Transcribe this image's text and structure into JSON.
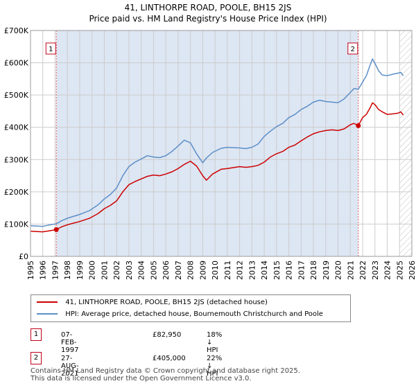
{
  "title_line1": "41, LINTHORPE ROAD, POOLE, BH15 2JS",
  "title_line2": "Price paid vs. HM Land Registry's House Price Index (HPI)",
  "colors": {
    "property": "#cc0000",
    "hpi": "#5b8ec8",
    "grid": "#cccccc",
    "shade": "#dde6f3"
  },
  "legend": {
    "property_label": "41, LINTHORPE ROAD, POOLE, BH15 2JS (detached house)",
    "hpi_label": "HPI: Average price, detached house, Bournemouth Christchurch and Poole"
  },
  "sales": [
    {
      "marker": "1",
      "date": "07-FEB-1997",
      "price": "£82,950",
      "hpi_diff": "18% ↓ HPI"
    },
    {
      "marker": "2",
      "date": "27-AUG-2021",
      "price": "£405,000",
      "hpi_diff": "22% ↓ HPI"
    }
  ],
  "footer_line1": "Contains HM Land Registry data © Crown copyright and database right 2025.",
  "footer_line2": "This data is licensed under the Open Government Licence v3.0.",
  "chart_data": {
    "type": "line",
    "title": "41, LINTHORPE ROAD, POOLE, BH15 2JS — Price paid vs. HM Land Registry's House Price Index (HPI)",
    "xlim": [
      1995,
      2026
    ],
    "ylim": [
      0,
      700000
    ],
    "xticks": [
      1995,
      1996,
      1997,
      1998,
      1999,
      2000,
      2001,
      2002,
      2003,
      2004,
      2005,
      2006,
      2007,
      2008,
      2009,
      2010,
      2011,
      2012,
      2013,
      2014,
      2015,
      2016,
      2017,
      2018,
      2019,
      2020,
      2021,
      2022,
      2023,
      2024,
      2025,
      2026
    ],
    "yticks": [
      0,
      100000,
      200000,
      300000,
      400000,
      500000,
      600000,
      700000
    ],
    "ytick_labels": [
      "£0",
      "£100K",
      "£200K",
      "£300K",
      "£400K",
      "£500K",
      "£600K",
      "£700K"
    ],
    "shaded_periods": [
      [
        1997.1,
        2021.65
      ]
    ],
    "hatched_future_from": 2025.0,
    "series": [
      {
        "name": "41, LINTHORPE ROAD, POOLE, BH15 2JS (detached house)",
        "color": "#cc0000",
        "x": [
          1995.0,
          1996.0,
          1996.5,
          1997.1,
          1997.5,
          1998.0,
          1999.0,
          1999.8,
          2000.5,
          2001.0,
          2001.5,
          2002.0,
          2002.5,
          2003.0,
          2003.5,
          2004.0,
          2004.5,
          2005.0,
          2005.5,
          2006.0,
          2006.5,
          2007.0,
          2007.5,
          2008.0,
          2008.5,
          2009.0,
          2009.3,
          2009.8,
          2010.5,
          2011.0,
          2011.5,
          2012.0,
          2012.5,
          2013.0,
          2013.5,
          2014.0,
          2014.5,
          2015.0,
          2015.5,
          2016.0,
          2016.5,
          2017.0,
          2017.5,
          2018.0,
          2018.5,
          2019.0,
          2019.5,
          2020.0,
          2020.5,
          2021.0,
          2021.3,
          2021.65,
          2022.0,
          2022.3,
          2022.6,
          2022.8,
          2023.0,
          2023.3,
          2023.6,
          2024.0,
          2024.5,
          2024.9,
          2025.1,
          2025.3
        ],
        "values": [
          78000,
          76000,
          79000,
          82950,
          91000,
          98000,
          108000,
          118000,
          133000,
          148000,
          158000,
          172000,
          200000,
          222000,
          232000,
          240000,
          248000,
          252000,
          250000,
          255000,
          262000,
          272000,
          285000,
          295000,
          280000,
          250000,
          236000,
          255000,
          270000,
          272000,
          275000,
          278000,
          276000,
          278000,
          282000,
          292000,
          308000,
          318000,
          325000,
          338000,
          345000,
          358000,
          370000,
          380000,
          386000,
          390000,
          392000,
          390000,
          395000,
          408000,
          412000,
          405000,
          430000,
          440000,
          460000,
          476000,
          470000,
          455000,
          448000,
          440000,
          442000,
          444000,
          448000,
          438000
        ]
      },
      {
        "name": "HPI: Average price, detached house, Bournemouth Christchurch and Poole",
        "color": "#5b8ec8",
        "x": [
          1995.0,
          1996.0,
          1996.5,
          1997.1,
          1997.5,
          1998.0,
          1999.0,
          1999.8,
          2000.5,
          2001.0,
          2001.5,
          2002.0,
          2002.5,
          2003.0,
          2003.5,
          2004.0,
          2004.5,
          2005.0,
          2005.5,
          2006.0,
          2006.5,
          2007.0,
          2007.5,
          2008.0,
          2008.5,
          2009.0,
          2009.3,
          2009.8,
          2010.5,
          2011.0,
          2011.5,
          2012.0,
          2012.5,
          2013.0,
          2013.5,
          2014.0,
          2014.5,
          2015.0,
          2015.5,
          2016.0,
          2016.5,
          2017.0,
          2017.5,
          2018.0,
          2018.5,
          2019.0,
          2019.5,
          2020.0,
          2020.5,
          2021.0,
          2021.3,
          2021.65,
          2022.0,
          2022.3,
          2022.6,
          2022.8,
          2023.0,
          2023.3,
          2023.6,
          2024.0,
          2024.5,
          2024.9,
          2025.1,
          2025.3
        ],
        "values": [
          95000,
          93000,
          97000,
          101000,
          110000,
          118000,
          130000,
          142000,
          160000,
          178000,
          192000,
          212000,
          250000,
          278000,
          292000,
          302000,
          312000,
          308000,
          306000,
          312000,
          325000,
          342000,
          360000,
          352000,
          318000,
          290000,
          305000,
          322000,
          335000,
          338000,
          337000,
          336000,
          334000,
          338000,
          348000,
          372000,
          388000,
          402000,
          412000,
          430000,
          440000,
          455000,
          465000,
          478000,
          484000,
          480000,
          478000,
          476000,
          488000,
          508000,
          520000,
          518000,
          540000,
          560000,
          592000,
          612000,
          598000,
          575000,
          562000,
          560000,
          565000,
          568000,
          570000,
          560000
        ]
      }
    ],
    "sale_points": [
      {
        "label": "1",
        "x": 1997.1,
        "y": 82950
      },
      {
        "label": "2",
        "x": 2021.65,
        "y": 405000
      }
    ]
  }
}
